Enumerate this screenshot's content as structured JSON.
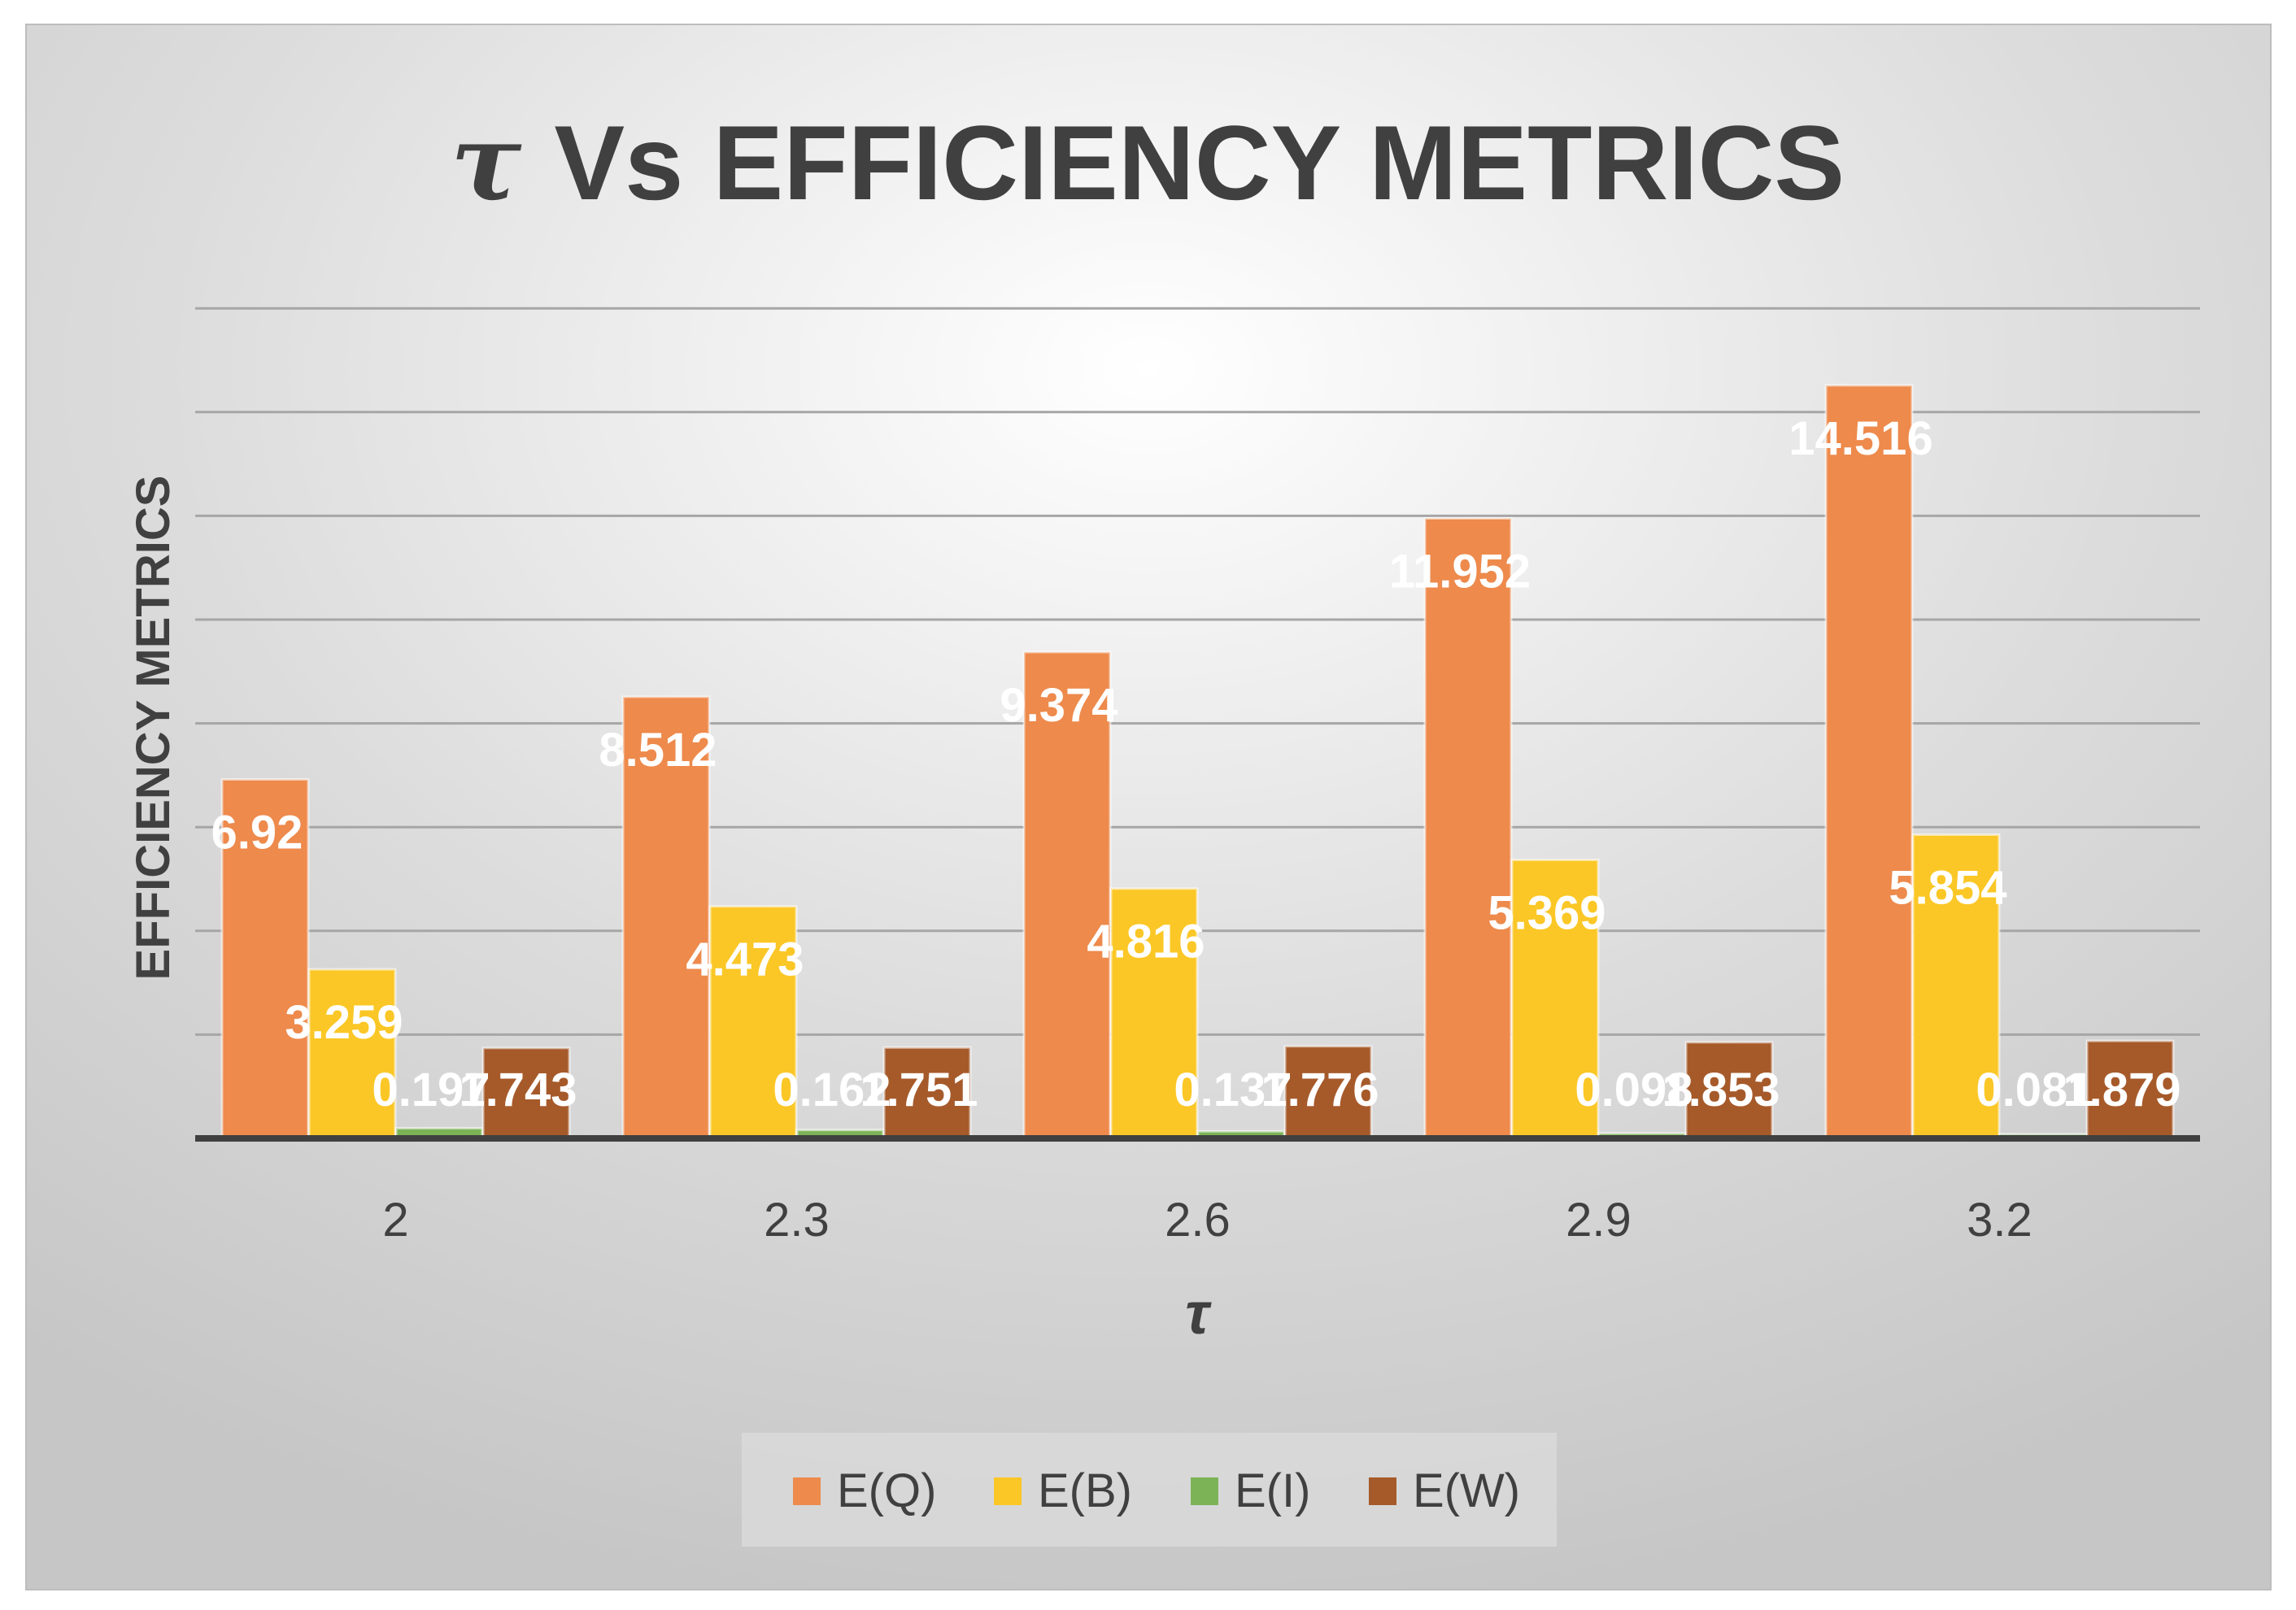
{
  "chart_data": {
    "type": "bar",
    "title_symbol": "τ",
    "title_rest": "Vs EFFICIENCY METRICS",
    "xlabel": "τ",
    "ylabel": "EFFICIENCY METRICS",
    "categories": [
      "2",
      "2.3",
      "2.6",
      "2.9",
      "3.2"
    ],
    "series": [
      {
        "name": "E(Q)",
        "color": "#ED8A4C",
        "values": [
          6.92,
          8.512,
          9.374,
          11.952,
          14.516
        ],
        "labels": [
          "6.92",
          "8.512",
          "9.374",
          "11.952",
          "14.516"
        ]
      },
      {
        "name": "E(B)",
        "color": "#FBC726",
        "values": [
          3.259,
          4.473,
          4.816,
          5.369,
          5.854
        ],
        "labels": [
          "3.259",
          "4.473",
          "4.816",
          "5.369",
          "5.854"
        ]
      },
      {
        "name": "E(I)",
        "color": "#7DB357",
        "values": [
          0.197,
          0.162,
          0.137,
          0.098,
          0.081
        ],
        "labels": [
          "0.197",
          "0.162",
          "0.137",
          "0.098",
          "0.081"
        ]
      },
      {
        "name": "E(W)",
        "color": "#A65A2A",
        "values": [
          1.743,
          1.751,
          1.776,
          1.853,
          1.879
        ],
        "labels": [
          "1.743",
          "1.751",
          "1.776",
          "1.853",
          "1.879"
        ]
      }
    ],
    "ylim": [
      0,
      16
    ],
    "grid": true,
    "legend_position": "bottom"
  }
}
